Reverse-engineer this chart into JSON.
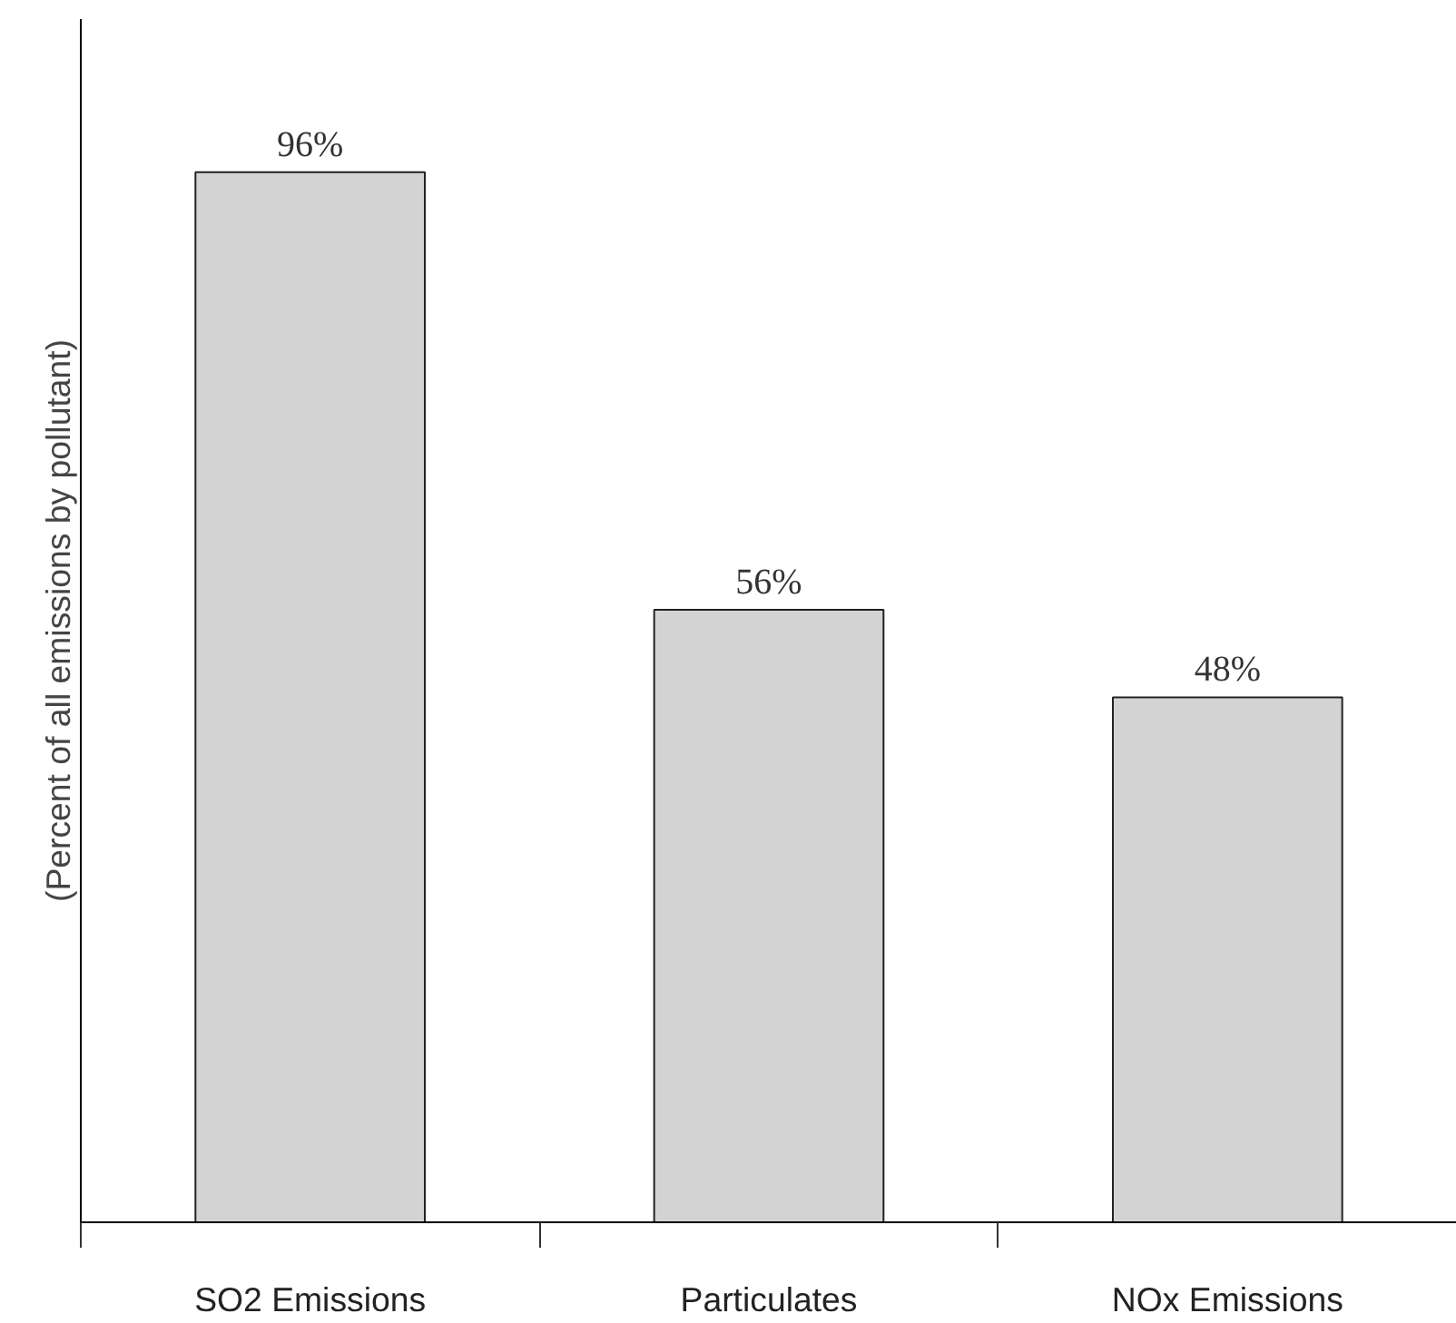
{
  "chart_data": {
    "type": "bar",
    "ylabel": "(Percent of all emissions by pollutant)",
    "categories": [
      "SO2 Emissions",
      "Particulates",
      "NOx Emissions"
    ],
    "values": [
      96,
      56,
      48
    ],
    "value_labels": [
      "96%",
      "56%",
      "48%"
    ],
    "color": "#d3d3d3",
    "ylim": [
      0,
      110
    ],
    "tick_labels": "x"
  }
}
